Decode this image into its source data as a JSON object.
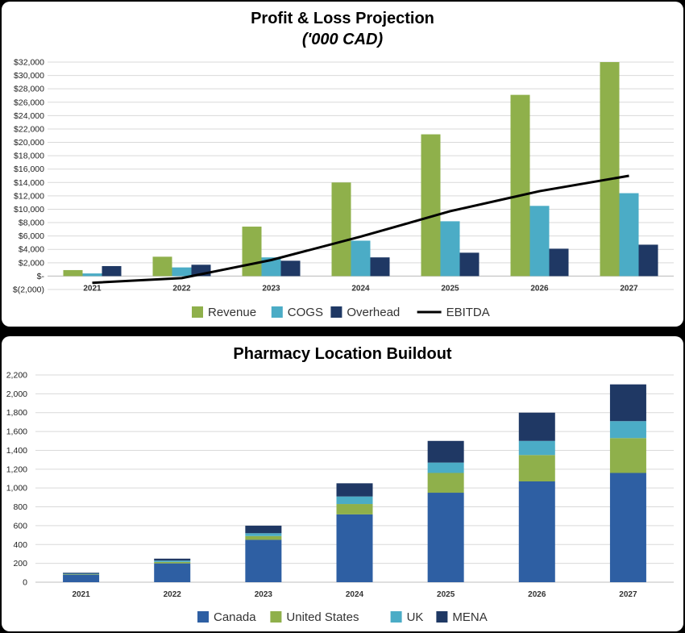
{
  "chart_data": [
    {
      "type": "bar",
      "title": "Profit & Loss Projection",
      "subtitle": "('000 CAD)",
      "categories": [
        "2021",
        "2022",
        "2023",
        "2024",
        "2025",
        "2026",
        "2027"
      ],
      "ylim": [
        -2000,
        32000
      ],
      "yticks": [
        -2000,
        0,
        2000,
        4000,
        6000,
        8000,
        10000,
        12000,
        14000,
        16000,
        18000,
        20000,
        22000,
        24000,
        26000,
        28000,
        30000,
        32000
      ],
      "ytick_labels": [
        "$(2,000)",
        "$-",
        "$2,000",
        "$4,000",
        "$6,000",
        "$8,000",
        "$10,000",
        "$12,000",
        "$14,000",
        "$16,000",
        "$18,000",
        "$20,000",
        "$22,000",
        "$24,000",
        "$26,000",
        "$28,000",
        "$30,000",
        "$32,000"
      ],
      "grid": true,
      "legend_position": "bottom",
      "series": [
        {
          "name": "Revenue",
          "type": "bar",
          "color": "#8fb04b",
          "values": [
            900,
            2900,
            7400,
            14000,
            21200,
            27100,
            32000
          ]
        },
        {
          "name": "COGS",
          "type": "bar",
          "color": "#4bacc6",
          "values": [
            400,
            1300,
            2800,
            5300,
            8200,
            10500,
            12400
          ]
        },
        {
          "name": "Overhead",
          "type": "bar",
          "color": "#1f3864",
          "values": [
            1500,
            1700,
            2300,
            2800,
            3500,
            4100,
            4700
          ]
        },
        {
          "name": "EBITDA",
          "type": "line",
          "color": "#000000",
          "values": [
            -1000,
            -300,
            2400,
            5900,
            9700,
            12700,
            15000
          ]
        }
      ]
    },
    {
      "type": "bar",
      "stacked": true,
      "title": "Pharmacy Location Buildout",
      "categories": [
        "2021",
        "2022",
        "2023",
        "2024",
        "2025",
        "2026",
        "2027"
      ],
      "ylim": [
        0,
        2200
      ],
      "yticks": [
        0,
        200,
        400,
        600,
        800,
        1000,
        1200,
        1400,
        1600,
        1800,
        2000,
        2200
      ],
      "ytick_labels": [
        "0",
        "200",
        "400",
        "600",
        "800",
        "1,000",
        "1,200",
        "1,400",
        "1,600",
        "1,800",
        "2,000",
        "2,200"
      ],
      "grid": true,
      "legend_position": "bottom",
      "series": [
        {
          "name": "Canada",
          "color": "#2e5fa3",
          "values": [
            80,
            200,
            450,
            720,
            950,
            1070,
            1160
          ]
        },
        {
          "name": "United States",
          "color": "#8fb04b",
          "values": [
            5,
            15,
            40,
            110,
            210,
            280,
            370
          ]
        },
        {
          "name": "UK",
          "color": "#4bacc6",
          "values": [
            5,
            15,
            30,
            80,
            110,
            150,
            180
          ]
        },
        {
          "name": "MENA",
          "color": "#1f3864",
          "values": [
            10,
            20,
            80,
            140,
            230,
            300,
            390
          ]
        }
      ]
    }
  ]
}
